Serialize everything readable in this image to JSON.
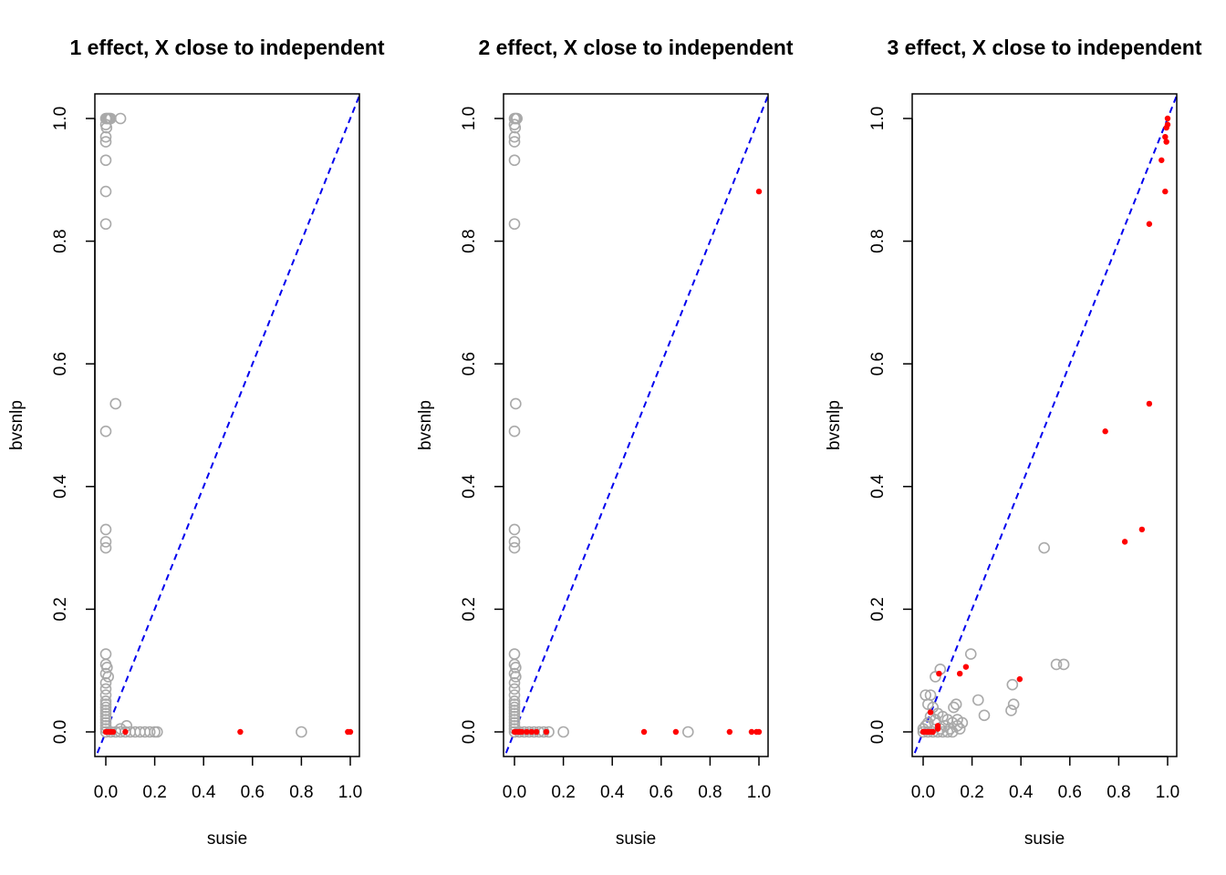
{
  "chart_data": [
    {
      "type": "scatter",
      "title": "1 effect, X close to independent",
      "xlabel": "susie",
      "ylabel": "bvsnlp",
      "xlim": [
        0,
        1
      ],
      "ylim": [
        0,
        1
      ],
      "xticks": [
        "0.0",
        "0.2",
        "0.4",
        "0.6",
        "0.8",
        "1.0"
      ],
      "yticks": [
        "0.0",
        "0.2",
        "0.4",
        "0.6",
        "0.8",
        "1.0"
      ],
      "reference_line": {
        "slope": 1,
        "intercept": 0,
        "style": "dashed",
        "color": "#0000ee"
      },
      "series": [
        {
          "marker": "open-circle",
          "color": "#a9a9a9",
          "points": [
            [
              0.0,
              1.0
            ],
            [
              0.005,
              1.0
            ],
            [
              0.01,
              1.0
            ],
            [
              0.015,
              1.0
            ],
            [
              0.02,
              1.0
            ],
            [
              0.06,
              1.0
            ],
            [
              0.0,
              0.99
            ],
            [
              0.003,
              0.985
            ],
            [
              0.0,
              0.97
            ],
            [
              0.0,
              0.962
            ],
            [
              0.0,
              0.932
            ],
            [
              0.0,
              0.881
            ],
            [
              0.0,
              0.828
            ],
            [
              0.04,
              0.535
            ],
            [
              0.0,
              0.49
            ],
            [
              0.0,
              0.33
            ],
            [
              0.0,
              0.31
            ],
            [
              0.0,
              0.3
            ],
            [
              0.0,
              0.127
            ],
            [
              0.0,
              0.11
            ],
            [
              0.005,
              0.105
            ],
            [
              0.0,
              0.095
            ],
            [
              0.01,
              0.09
            ],
            [
              0.0,
              0.08
            ],
            [
              0.0,
              0.07
            ],
            [
              0.0,
              0.06
            ],
            [
              0.0,
              0.05
            ],
            [
              0.0,
              0.045
            ],
            [
              0.0,
              0.04
            ],
            [
              0.0,
              0.035
            ],
            [
              0.0,
              0.03
            ],
            [
              0.0,
              0.025
            ],
            [
              0.0,
              0.02
            ],
            [
              0.0,
              0.015
            ],
            [
              0.0,
              0.01
            ],
            [
              0.0,
              0.005
            ],
            [
              0.085,
              0.01
            ],
            [
              0.06,
              0.005
            ],
            [
              0.0,
              0.0
            ],
            [
              0.02,
              0.0
            ],
            [
              0.04,
              0.0
            ],
            [
              0.06,
              0.0
            ],
            [
              0.08,
              0.0
            ],
            [
              0.1,
              0.0
            ],
            [
              0.12,
              0.0
            ],
            [
              0.14,
              0.0
            ],
            [
              0.16,
              0.0
            ],
            [
              0.18,
              0.0
            ],
            [
              0.2,
              0.0
            ],
            [
              0.21,
              0.0
            ],
            [
              0.8,
              0.0
            ]
          ]
        },
        {
          "marker": "filled-dot",
          "color": "#ff0000",
          "points": [
            [
              0.0,
              0.0
            ],
            [
              0.01,
              0.0
            ],
            [
              0.02,
              0.0
            ],
            [
              0.03,
              0.0
            ],
            [
              0.08,
              0.0
            ],
            [
              0.55,
              0.0
            ],
            [
              0.99,
              0.0
            ],
            [
              1.0,
              0.0
            ]
          ]
        }
      ]
    },
    {
      "type": "scatter",
      "title": "2 effect, X close to independent",
      "xlabel": "susie",
      "ylabel": "bvsnlp",
      "xlim": [
        0,
        1
      ],
      "ylim": [
        0,
        1
      ],
      "xticks": [
        "0.0",
        "0.2",
        "0.4",
        "0.6",
        "0.8",
        "1.0"
      ],
      "yticks": [
        "0.0",
        "0.2",
        "0.4",
        "0.6",
        "0.8",
        "1.0"
      ],
      "reference_line": {
        "slope": 1,
        "intercept": 0,
        "style": "dashed",
        "color": "#0000ee"
      },
      "series": [
        {
          "marker": "open-circle",
          "color": "#a9a9a9",
          "points": [
            [
              0.0,
              1.0
            ],
            [
              0.005,
              1.0
            ],
            [
              0.01,
              1.0
            ],
            [
              0.0,
              0.99
            ],
            [
              0.003,
              0.985
            ],
            [
              0.0,
              0.97
            ],
            [
              0.0,
              0.962
            ],
            [
              0.0,
              0.932
            ],
            [
              0.0,
              0.828
            ],
            [
              0.005,
              0.535
            ],
            [
              0.0,
              0.49
            ],
            [
              0.0,
              0.33
            ],
            [
              0.0,
              0.31
            ],
            [
              0.0,
              0.3
            ],
            [
              0.0,
              0.127
            ],
            [
              0.0,
              0.11
            ],
            [
              0.005,
              0.105
            ],
            [
              0.0,
              0.095
            ],
            [
              0.005,
              0.09
            ],
            [
              0.0,
              0.08
            ],
            [
              0.0,
              0.07
            ],
            [
              0.0,
              0.06
            ],
            [
              0.0,
              0.05
            ],
            [
              0.0,
              0.045
            ],
            [
              0.0,
              0.04
            ],
            [
              0.0,
              0.035
            ],
            [
              0.0,
              0.03
            ],
            [
              0.0,
              0.025
            ],
            [
              0.0,
              0.02
            ],
            [
              0.0,
              0.015
            ],
            [
              0.0,
              0.01
            ],
            [
              0.0,
              0.005
            ],
            [
              0.0,
              0.0
            ],
            [
              0.02,
              0.0
            ],
            [
              0.04,
              0.0
            ],
            [
              0.06,
              0.0
            ],
            [
              0.08,
              0.0
            ],
            [
              0.1,
              0.0
            ],
            [
              0.12,
              0.0
            ],
            [
              0.14,
              0.0
            ],
            [
              0.2,
              0.0
            ],
            [
              0.71,
              0.0
            ]
          ]
        },
        {
          "marker": "filled-dot",
          "color": "#ff0000",
          "points": [
            [
              1.0,
              0.881
            ],
            [
              0.0,
              0.0
            ],
            [
              0.01,
              0.0
            ],
            [
              0.02,
              0.0
            ],
            [
              0.03,
              0.0
            ],
            [
              0.05,
              0.0
            ],
            [
              0.07,
              0.0
            ],
            [
              0.09,
              0.0
            ],
            [
              0.13,
              0.0
            ],
            [
              0.53,
              0.0
            ],
            [
              0.66,
              0.0
            ],
            [
              0.88,
              0.0
            ],
            [
              0.97,
              0.0
            ],
            [
              0.99,
              0.0
            ],
            [
              1.0,
              0.0
            ]
          ]
        }
      ]
    },
    {
      "type": "scatter",
      "title": "3 effect, X close to independent",
      "xlabel": "susie",
      "ylabel": "bvsnlp",
      "xlim": [
        0,
        1
      ],
      "ylim": [
        0,
        1
      ],
      "xticks": [
        "0.0",
        "0.2",
        "0.4",
        "0.6",
        "0.8",
        "1.0"
      ],
      "yticks": [
        "0.0",
        "0.2",
        "0.4",
        "0.6",
        "0.8",
        "1.0"
      ],
      "reference_line": {
        "slope": 1,
        "intercept": 0,
        "style": "dashed",
        "color": "#0000ee"
      },
      "series": [
        {
          "marker": "open-circle",
          "color": "#a9a9a9",
          "points": [
            [
              0.495,
              0.3
            ],
            [
              0.545,
              0.11
            ],
            [
              0.575,
              0.11
            ],
            [
              0.365,
              0.077
            ],
            [
              0.36,
              0.035
            ],
            [
              0.37,
              0.045
            ],
            [
              0.195,
              0.127
            ],
            [
              0.07,
              0.102
            ],
            [
              0.05,
              0.09
            ],
            [
              0.225,
              0.052
            ],
            [
              0.25,
              0.027
            ],
            [
              0.135,
              0.045
            ],
            [
              0.125,
              0.04
            ],
            [
              0.14,
              0.02
            ],
            [
              0.16,
              0.015
            ],
            [
              0.03,
              0.06
            ],
            [
              0.01,
              0.06
            ],
            [
              0.02,
              0.045
            ],
            [
              0.04,
              0.04
            ],
            [
              0.06,
              0.03
            ],
            [
              0.08,
              0.025
            ],
            [
              0.1,
              0.02
            ],
            [
              0.12,
              0.015
            ],
            [
              0.14,
              0.01
            ],
            [
              0.09,
              0.01
            ],
            [
              0.05,
              0.02
            ],
            [
              0.03,
              0.025
            ],
            [
              0.02,
              0.015
            ],
            [
              0.01,
              0.01
            ],
            [
              0.0,
              0.005
            ],
            [
              0.0,
              0.0
            ],
            [
              0.02,
              0.0
            ],
            [
              0.04,
              0.0
            ],
            [
              0.06,
              0.0
            ],
            [
              0.08,
              0.0
            ],
            [
              0.1,
              0.0
            ],
            [
              0.12,
              0.0
            ],
            [
              0.07,
              0.005
            ],
            [
              0.11,
              0.005
            ],
            [
              0.15,
              0.005
            ]
          ]
        },
        {
          "marker": "filled-dot",
          "color": "#ff0000",
          "points": [
            [
              1.0,
              1.0
            ],
            [
              1.0,
              0.99
            ],
            [
              0.995,
              0.985
            ],
            [
              0.99,
              0.97
            ],
            [
              0.995,
              0.962
            ],
            [
              0.975,
              0.932
            ],
            [
              0.99,
              0.881
            ],
            [
              0.925,
              0.828
            ],
            [
              0.925,
              0.535
            ],
            [
              0.745,
              0.49
            ],
            [
              0.895,
              0.33
            ],
            [
              0.825,
              0.31
            ],
            [
              0.395,
              0.086
            ],
            [
              0.175,
              0.106
            ],
            [
              0.15,
              0.095
            ],
            [
              0.065,
              0.095
            ],
            [
              0.03,
              0.032
            ],
            [
              0.06,
              0.01
            ],
            [
              0.06,
              0.005
            ],
            [
              0.0,
              0.0
            ],
            [
              0.01,
              0.0
            ],
            [
              0.02,
              0.0
            ],
            [
              0.03,
              0.0
            ],
            [
              0.04,
              0.0
            ]
          ]
        }
      ]
    }
  ]
}
